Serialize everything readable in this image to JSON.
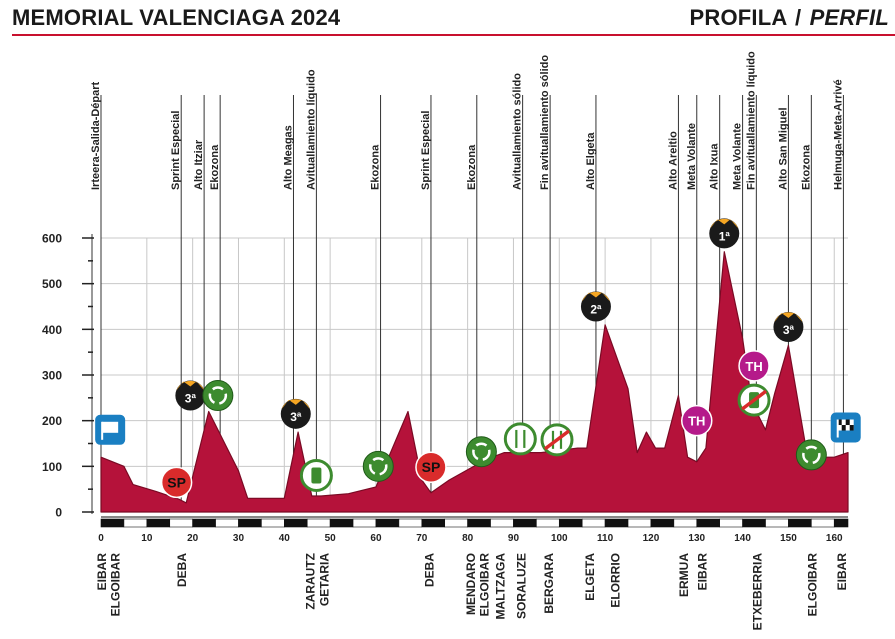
{
  "header": {
    "title": "MEMORIAL VALENCIAGA 2024",
    "right_main": "PROFILA",
    "right_sep": "/",
    "right_italic": "PERFIL"
  },
  "colors": {
    "profile_fill": "#b5123a",
    "profile_stroke": "#7a0a24",
    "grid": "#c8c8c8",
    "rule": "#c8102e",
    "kom_gradient_top": "#f5a623",
    "sp_red": "#d92b2b",
    "green_feed": "#3d8b2f",
    "th_magenta": "#b51a8a"
  },
  "chart_data": {
    "type": "area",
    "xlim": [
      0,
      163
    ],
    "ylim": [
      0,
      600
    ],
    "x_ticks": [
      0,
      10,
      20,
      30,
      40,
      50,
      60,
      70,
      80,
      90,
      100,
      110,
      120,
      130,
      140,
      150,
      160
    ],
    "y_ticks": [
      0,
      100,
      200,
      300,
      400,
      500,
      600
    ],
    "grid": true,
    "profile": [
      {
        "x": 0,
        "y": 120
      },
      {
        "x": 5,
        "y": 100
      },
      {
        "x": 7,
        "y": 60
      },
      {
        "x": 12,
        "y": 45
      },
      {
        "x": 17,
        "y": 28
      },
      {
        "x": 18.6,
        "y": 20
      },
      {
        "x": 23.5,
        "y": 220
      },
      {
        "x": 26,
        "y": 170
      },
      {
        "x": 30,
        "y": 90
      },
      {
        "x": 32,
        "y": 30
      },
      {
        "x": 36,
        "y": 30
      },
      {
        "x": 39,
        "y": 30
      },
      {
        "x": 40,
        "y": 30
      },
      {
        "x": 43,
        "y": 175
      },
      {
        "x": 46,
        "y": 35
      },
      {
        "x": 48,
        "y": 35
      },
      {
        "x": 54,
        "y": 40
      },
      {
        "x": 60,
        "y": 55
      },
      {
        "x": 67,
        "y": 220
      },
      {
        "x": 70,
        "y": 70
      },
      {
        "x": 72,
        "y": 42
      },
      {
        "x": 76,
        "y": 70
      },
      {
        "x": 84,
        "y": 115
      },
      {
        "x": 88,
        "y": 130
      },
      {
        "x": 96,
        "y": 130
      },
      {
        "x": 104,
        "y": 140
      },
      {
        "x": 106,
        "y": 140
      },
      {
        "x": 110,
        "y": 410
      },
      {
        "x": 115,
        "y": 270
      },
      {
        "x": 117,
        "y": 130
      },
      {
        "x": 119,
        "y": 175
      },
      {
        "x": 121,
        "y": 140
      },
      {
        "x": 123,
        "y": 140
      },
      {
        "x": 126,
        "y": 255
      },
      {
        "x": 128,
        "y": 120
      },
      {
        "x": 130,
        "y": 110
      },
      {
        "x": 132,
        "y": 140
      },
      {
        "x": 136,
        "y": 570
      },
      {
        "x": 140,
        "y": 380
      },
      {
        "x": 142,
        "y": 240
      },
      {
        "x": 145,
        "y": 180
      },
      {
        "x": 147,
        "y": 260
      },
      {
        "x": 150,
        "y": 365
      },
      {
        "x": 154,
        "y": 130
      },
      {
        "x": 156,
        "y": 120
      },
      {
        "x": 160,
        "y": 120
      },
      {
        "x": 163,
        "y": 130
      }
    ],
    "events": [
      {
        "km": 0,
        "label": "Irteera-Salida-Départ"
      },
      {
        "km": 17.5,
        "label": "Sprint Especial"
      },
      {
        "km": 22.5,
        "label": "Alto Itziar"
      },
      {
        "km": 26,
        "label": "Ekozona"
      },
      {
        "km": 42,
        "label": "Alto Meagas"
      },
      {
        "km": 47,
        "label": "Avituallamiento líquido"
      },
      {
        "km": 61,
        "label": "Ekozona"
      },
      {
        "km": 72,
        "label": "Sprint Especial"
      },
      {
        "km": 82,
        "label": "Ekozona"
      },
      {
        "km": 92,
        "label": "Avituallamiento sólido"
      },
      {
        "km": 98,
        "label": "Fin avituallamiento sólido"
      },
      {
        "km": 108,
        "label": "Alto Elgeta"
      },
      {
        "km": 126,
        "label": "Alto Areitio"
      },
      {
        "km": 130,
        "label": "Meta Volante"
      },
      {
        "km": 135,
        "label": "Alto Ixua"
      },
      {
        "km": 140,
        "label": "Meta Volante"
      },
      {
        "km": 143,
        "label": "Fin avituallamiento líquido"
      },
      {
        "km": 150,
        "label": "Alto San Miguel"
      },
      {
        "km": 155,
        "label": "Ekozona"
      },
      {
        "km": 162,
        "label": "Helmuga-Meta-Arrivé"
      }
    ],
    "badges": [
      {
        "type": "start",
        "km": 2,
        "elev": 180
      },
      {
        "type": "sp",
        "km": 16.5,
        "elev": 65,
        "text": "SP"
      },
      {
        "type": "kom",
        "km": 19.5,
        "elev": 255,
        "text": "3ª"
      },
      {
        "type": "eco",
        "km": 25.5,
        "elev": 255
      },
      {
        "type": "kom",
        "km": 42.5,
        "elev": 215,
        "text": "3ª"
      },
      {
        "type": "bottle",
        "km": 47,
        "elev": 80
      },
      {
        "type": "eco",
        "km": 60.5,
        "elev": 100
      },
      {
        "type": "sp",
        "km": 72,
        "elev": 98,
        "text": "SP"
      },
      {
        "type": "eco",
        "km": 83,
        "elev": 132
      },
      {
        "type": "fork",
        "km": 91.5,
        "elev": 160
      },
      {
        "type": "nofork",
        "km": 99.5,
        "elev": 158
      },
      {
        "type": "kom",
        "km": 108,
        "elev": 450,
        "text": "2ª"
      },
      {
        "type": "th",
        "km": 130,
        "elev": 200,
        "text": "TH"
      },
      {
        "type": "kom",
        "km": 136,
        "elev": 610,
        "text": "1ª"
      },
      {
        "type": "th",
        "km": 142.5,
        "elev": 320,
        "text": "TH"
      },
      {
        "type": "nobottle",
        "km": 142.5,
        "elev": 245
      },
      {
        "type": "kom",
        "km": 150,
        "elev": 405,
        "text": "3ª"
      },
      {
        "type": "eco",
        "km": 155,
        "elev": 125
      },
      {
        "type": "finish",
        "km": 162.5,
        "elev": 185
      }
    ],
    "towns": [
      {
        "km": 0,
        "name": "EIBAR"
      },
      {
        "km": 3,
        "name": "ELGOIBAR"
      },
      {
        "km": 17.5,
        "name": "DEBA"
      },
      {
        "km": 45.5,
        "name": "ZARAUTZ"
      },
      {
        "km": 48.5,
        "name": "GETARIA"
      },
      {
        "km": 71.5,
        "name": "DEBA"
      },
      {
        "km": 80.5,
        "name": "MENDARO"
      },
      {
        "km": 83.5,
        "name": "ELGOIBAR"
      },
      {
        "km": 87,
        "name": "MALTZAGA"
      },
      {
        "km": 91.5,
        "name": "SORALUZE"
      },
      {
        "km": 97.5,
        "name": "BERGARA"
      },
      {
        "km": 106.5,
        "name": "ELGETA"
      },
      {
        "km": 112,
        "name": "ELORRIO"
      },
      {
        "km": 127,
        "name": "ERMUA"
      },
      {
        "km": 131,
        "name": "EIBAR"
      },
      {
        "km": 143,
        "name": "ETXEBERRIA"
      },
      {
        "km": 155,
        "name": "ELGOIBAR"
      },
      {
        "km": 161.5,
        "name": "EIBAR"
      }
    ]
  }
}
